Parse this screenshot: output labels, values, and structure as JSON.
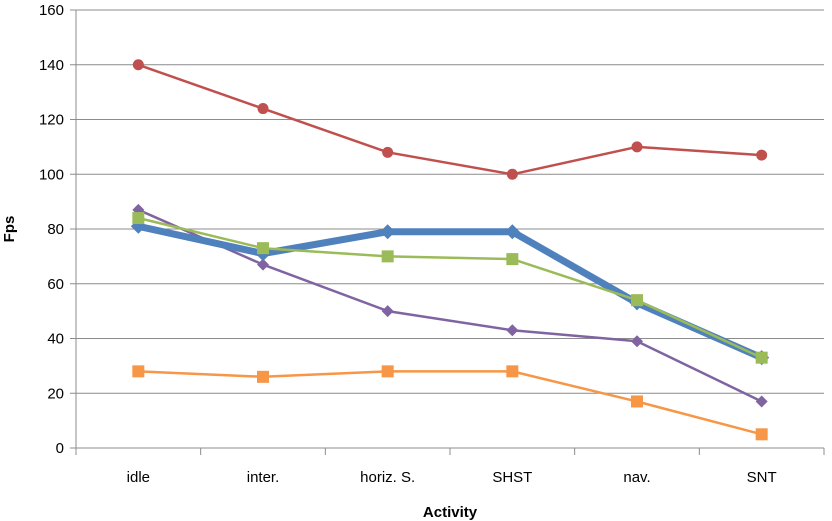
{
  "chart_data": {
    "type": "line",
    "title": "",
    "xlabel": "Activity",
    "ylabel": "Fps",
    "ylim": [
      0,
      160
    ],
    "yticks": [
      0,
      20,
      40,
      60,
      80,
      100,
      120,
      140,
      160
    ],
    "grid": true,
    "categories": [
      "idle",
      "inter.",
      "horiz. S.",
      "SHST",
      "nav.",
      "SNT"
    ],
    "series": [
      {
        "color": "#c0504d",
        "marker": "circle",
        "line_width": "thin",
        "values": [
          140,
          124,
          108,
          100,
          110,
          107
        ]
      },
      {
        "color": "#8064a2",
        "marker": "diamond",
        "line_width": "thin",
        "values": [
          87,
          67,
          50,
          43,
          39,
          17
        ]
      },
      {
        "color": "#4f81bd",
        "marker": "diamond",
        "line_width": "thick",
        "values": [
          81,
          71,
          79,
          79,
          53,
          33
        ]
      },
      {
        "color": "#9bbb59",
        "marker": "square",
        "line_width": "thin",
        "values": [
          84,
          73,
          70,
          69,
          54,
          33
        ]
      },
      {
        "color": "#f79646",
        "marker": "square",
        "line_width": "thin",
        "values": [
          28,
          26,
          28,
          28,
          17,
          5
        ]
      }
    ]
  }
}
